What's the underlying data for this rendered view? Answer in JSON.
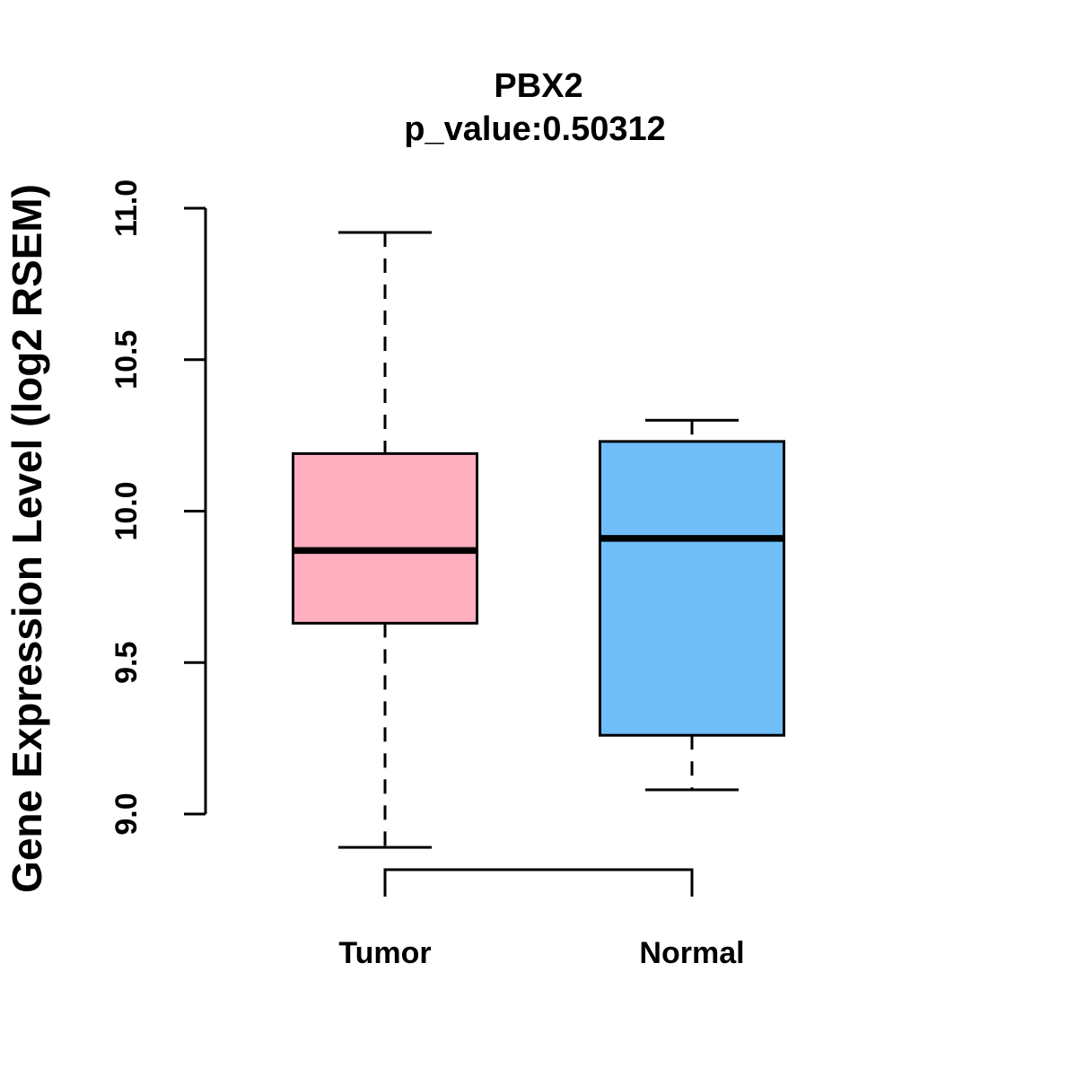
{
  "chart_data": {
    "type": "boxplot",
    "title": "PBX2",
    "subtitle": "p_value:0.50312",
    "ylabel": "Gene Expression Level (log2 RSEM)",
    "xlabel": "",
    "ylim": [
      9.0,
      11.0
    ],
    "yticks": [
      {
        "value": 9.0,
        "label": "9.0"
      },
      {
        "value": 9.5,
        "label": "9.5"
      },
      {
        "value": 10.0,
        "label": "10.0"
      },
      {
        "value": 10.5,
        "label": "10.5"
      },
      {
        "value": 11.0,
        "label": "11.0"
      }
    ],
    "grid": false,
    "legend": "none",
    "groups": [
      {
        "label": "Tumor",
        "fill_color": "#FFAFC0",
        "whisker_low": 8.89,
        "q1": 9.63,
        "median": 9.87,
        "q3": 10.19,
        "whisker_high": 10.92
      },
      {
        "label": "Normal",
        "fill_color": "#70BEF8",
        "whisker_low": 9.08,
        "q1": 9.26,
        "median": 9.91,
        "q3": 10.23,
        "whisker_high": 10.3
      }
    ],
    "comparison_bracket": {
      "present": true,
      "connects": [
        "Tumor",
        "Normal"
      ]
    },
    "stroke_color": "#000000",
    "background_color": "#FFFFFF"
  }
}
